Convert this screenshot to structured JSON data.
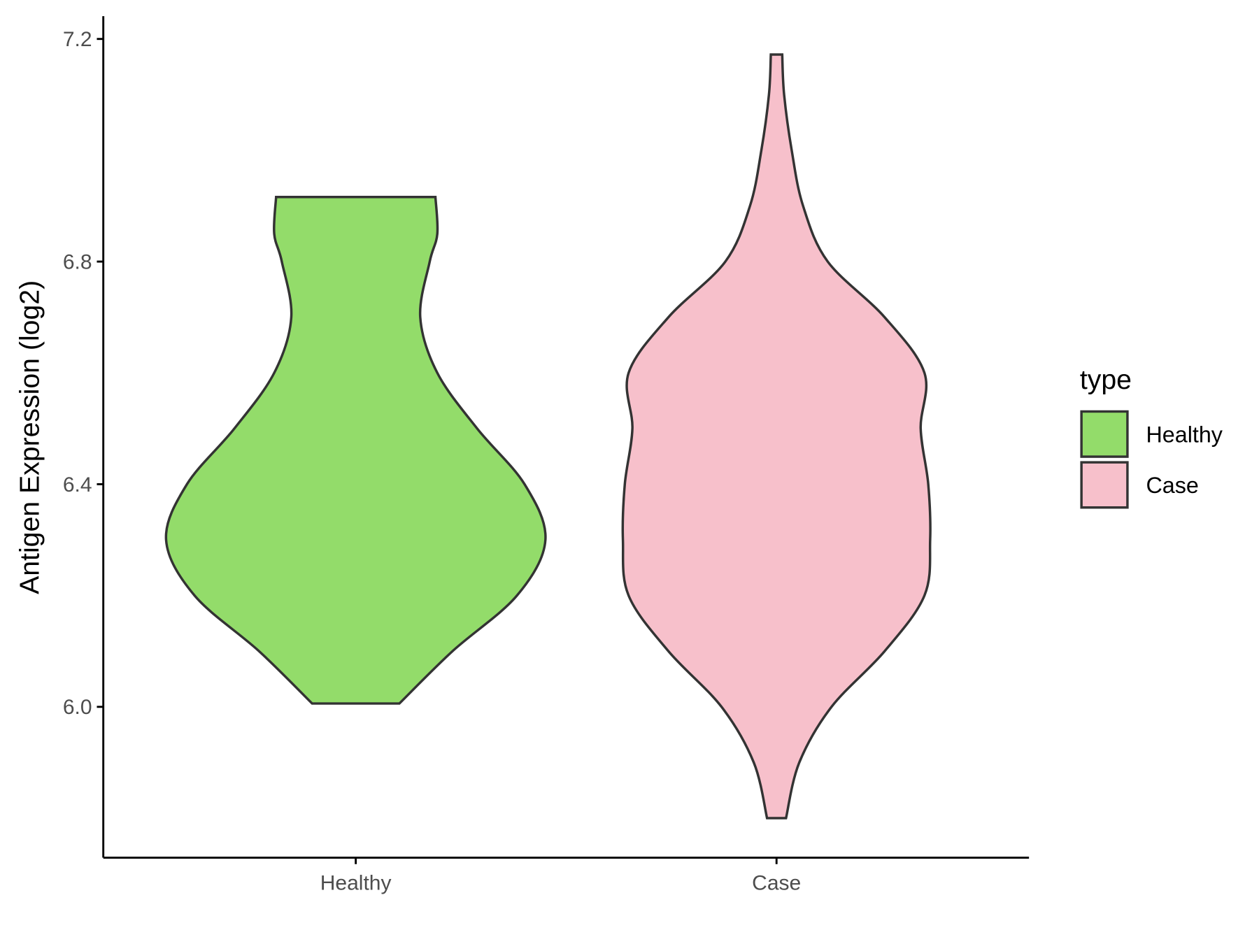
{
  "chart_data": {
    "type": "violin",
    "y_label": "Antigen Expression (log2)",
    "categories": [
      "Healthy",
      "Case"
    ],
    "series": [
      {
        "name": "Healthy",
        "color": "#93dc6a",
        "y": [
          6.006,
          6.1,
          6.2,
          6.3,
          6.4,
          6.5,
          6.6,
          6.7,
          6.8,
          6.85,
          6.916
        ],
        "width": [
          0.23,
          0.51,
          0.85,
          1.0,
          0.89,
          0.64,
          0.43,
          0.34,
          0.39,
          0.43,
          0.42
        ]
      },
      {
        "name": "Case",
        "color": "#f7c0cb",
        "y": [
          5.8,
          5.9,
          6.0,
          6.1,
          6.2,
          6.3,
          6.4,
          6.5,
          6.6,
          6.7,
          6.8,
          6.9,
          7.0,
          7.1,
          7.172
        ],
        "width": [
          0.05,
          0.12,
          0.29,
          0.57,
          0.78,
          0.81,
          0.8,
          0.76,
          0.78,
          0.57,
          0.27,
          0.14,
          0.08,
          0.04,
          0.03
        ]
      }
    ],
    "ylim": [
      5.729,
      7.241
    ],
    "yticks": [
      {
        "value": 6,
        "label": "6.0"
      },
      {
        "value": 6.4,
        "label": "6.4"
      },
      {
        "value": 6.8,
        "label": "6.8"
      },
      {
        "value": 7.2,
        "label": "7.2"
      }
    ],
    "legend_title": "type",
    "legend_position": "right"
  }
}
